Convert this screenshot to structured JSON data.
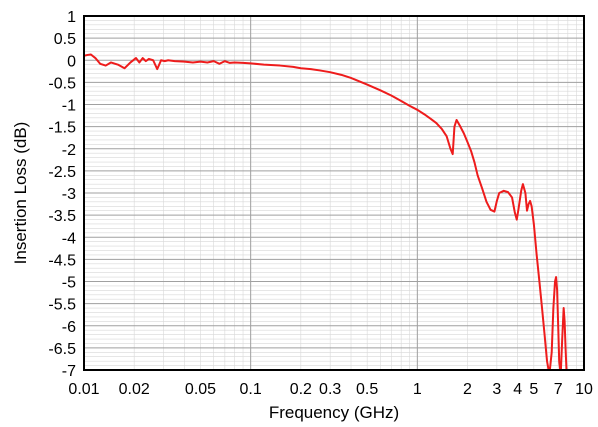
{
  "chart_data": {
    "type": "line",
    "title": "",
    "xlabel": "Frequency (GHz)",
    "ylabel": "Insertion Loss (dB)",
    "x_scale": "log",
    "xlim": [
      0.01,
      10
    ],
    "ylim": [
      -7,
      1
    ],
    "grid": true,
    "x_ticks": [
      {
        "value": 0.01,
        "label": "0.01"
      },
      {
        "value": 0.02,
        "label": "0.02"
      },
      {
        "value": 0.05,
        "label": "0.05"
      },
      {
        "value": 0.1,
        "label": "0.1"
      },
      {
        "value": 0.2,
        "label": "0.2"
      },
      {
        "value": 0.3,
        "label": "0.3"
      },
      {
        "value": 0.5,
        "label": "0.5"
      },
      {
        "value": 1,
        "label": "1"
      },
      {
        "value": 2,
        "label": "2"
      },
      {
        "value": 3,
        "label": "3"
      },
      {
        "value": 4,
        "label": "4"
      },
      {
        "value": 5,
        "label": "5"
      },
      {
        "value": 7,
        "label": "7"
      },
      {
        "value": 10,
        "label": "10"
      }
    ],
    "y_ticks": [
      {
        "value": 1,
        "label": "1"
      },
      {
        "value": 0.5,
        "label": "0.5"
      },
      {
        "value": 0,
        "label": "0"
      },
      {
        "value": -0.5,
        "label": "-0.5"
      },
      {
        "value": -1,
        "label": "-1"
      },
      {
        "value": -1.5,
        "label": "-1.5"
      },
      {
        "value": -2,
        "label": "-2"
      },
      {
        "value": -2.5,
        "label": "-2.5"
      },
      {
        "value": -3,
        "label": "-3"
      },
      {
        "value": -3.5,
        "label": "-3.5"
      },
      {
        "value": -4,
        "label": "-4"
      },
      {
        "value": -4.5,
        "label": "-4.5"
      },
      {
        "value": -5,
        "label": "-5"
      },
      {
        "value": -5.5,
        "label": "-5.5"
      },
      {
        "value": -6,
        "label": "-6"
      },
      {
        "value": -6.5,
        "label": "-6.5"
      },
      {
        "value": -7,
        "label": "-7"
      }
    ],
    "series": [
      {
        "color": "#ee1c1c",
        "x": [
          0.01,
          0.0105,
          0.011,
          0.0117,
          0.0125,
          0.0135,
          0.0145,
          0.016,
          0.0175,
          0.019,
          0.0205,
          0.0215,
          0.0225,
          0.0235,
          0.0245,
          0.026,
          0.0275,
          0.029,
          0.0305,
          0.032,
          0.035,
          0.04,
          0.045,
          0.05,
          0.055,
          0.06,
          0.065,
          0.07,
          0.075,
          0.08,
          0.09,
          0.1,
          0.12,
          0.15,
          0.18,
          0.2,
          0.23,
          0.26,
          0.3,
          0.35,
          0.4,
          0.5,
          0.6,
          0.7,
          0.8,
          0.9,
          1.0,
          1.1,
          1.2,
          1.3,
          1.4,
          1.5,
          1.58,
          1.63,
          1.67,
          1.72,
          1.8,
          1.9,
          2.0,
          2.1,
          2.2,
          2.3,
          2.45,
          2.6,
          2.75,
          2.9,
          3.0,
          3.1,
          3.3,
          3.5,
          3.7,
          3.85,
          3.95,
          4.05,
          4.2,
          4.3,
          4.45,
          4.55,
          4.65,
          4.75,
          4.85,
          5.0,
          5.2,
          5.4,
          5.6,
          5.8,
          6.0,
          6.2,
          6.4,
          6.55,
          6.7,
          6.8,
          6.9,
          7.0,
          7.1,
          7.25,
          7.4,
          7.55,
          7.65,
          7.75,
          7.85,
          7.95
        ],
        "y": [
          0.1,
          0.12,
          0.13,
          0.05,
          -0.08,
          -0.12,
          -0.05,
          -0.1,
          -0.18,
          -0.05,
          0.05,
          -0.05,
          0.05,
          -0.02,
          0.03,
          0.0,
          -0.2,
          0.0,
          -0.02,
          0.0,
          -0.02,
          -0.03,
          -0.05,
          -0.03,
          -0.05,
          -0.02,
          -0.08,
          -0.02,
          -0.06,
          -0.05,
          -0.06,
          -0.07,
          -0.1,
          -0.12,
          -0.15,
          -0.18,
          -0.2,
          -0.23,
          -0.27,
          -0.33,
          -0.4,
          -0.55,
          -0.68,
          -0.8,
          -0.92,
          -1.03,
          -1.12,
          -1.22,
          -1.32,
          -1.42,
          -1.55,
          -1.72,
          -2.0,
          -2.12,
          -1.5,
          -1.35,
          -1.48,
          -1.65,
          -1.85,
          -2.05,
          -2.3,
          -2.6,
          -2.9,
          -3.2,
          -3.38,
          -3.42,
          -3.18,
          -3.0,
          -2.95,
          -2.98,
          -3.1,
          -3.45,
          -3.6,
          -3.35,
          -2.95,
          -2.8,
          -3.0,
          -3.4,
          -3.25,
          -3.18,
          -3.3,
          -3.7,
          -4.4,
          -5.0,
          -5.6,
          -6.2,
          -6.8,
          -7.1,
          -6.6,
          -5.6,
          -5.0,
          -4.9,
          -5.2,
          -6.0,
          -6.8,
          -7.1,
          -6.3,
          -5.6,
          -5.9,
          -6.5,
          -7.0,
          -7.1
        ]
      }
    ]
  }
}
